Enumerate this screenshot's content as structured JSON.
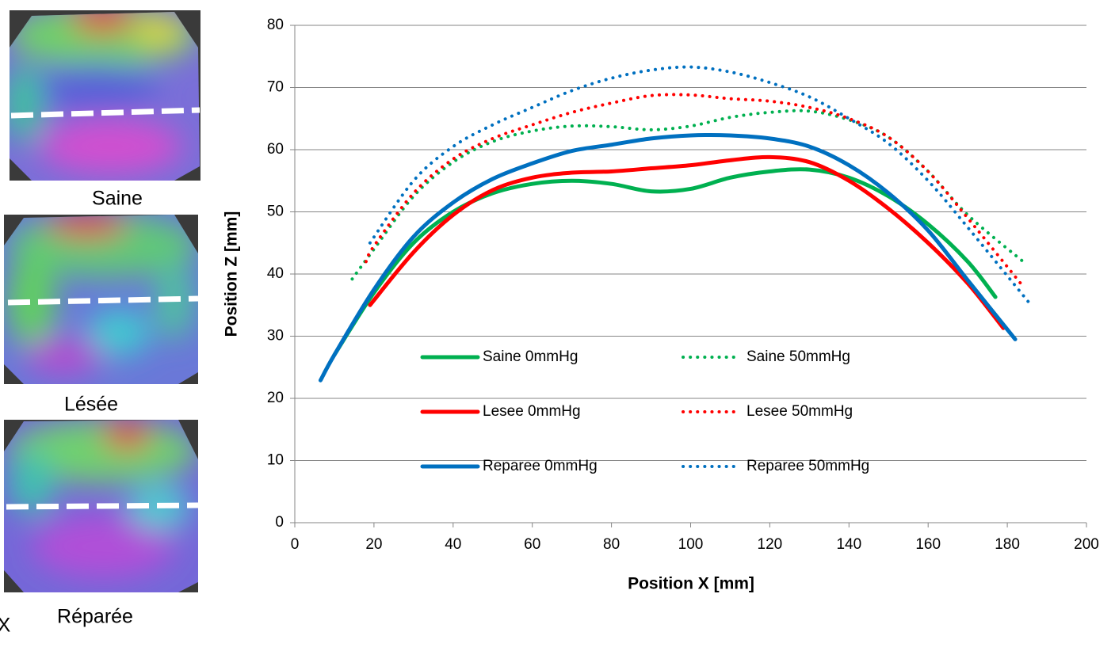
{
  "panels": [
    {
      "label": "Saine"
    },
    {
      "label": "Lésée"
    },
    {
      "label": "Réparée"
    }
  ],
  "corner_label": "X",
  "chart_data": {
    "type": "line",
    "x_label": "Position X  [mm]",
    "y_label": "Position Z  [mm]",
    "xlim": [
      0,
      200
    ],
    "xticks": [
      0,
      20,
      40,
      60,
      80,
      100,
      120,
      140,
      160,
      180,
      200
    ],
    "ylim": [
      0,
      80
    ],
    "yticks": [
      0,
      10,
      20,
      30,
      40,
      50,
      60,
      70,
      80
    ],
    "grid": true,
    "legend": "lower center",
    "series": [
      {
        "name": "Saine 0mmHg",
        "color": "#00b050",
        "style": "solid",
        "x": [
          10,
          20,
          30,
          40,
          50,
          60,
          70,
          80,
          90,
          100,
          110,
          120,
          130,
          140,
          150,
          160,
          170,
          177
        ],
        "values": [
          27,
          37,
          45,
          50,
          53,
          54.5,
          55,
          54.5,
          53.3,
          53.7,
          55.5,
          56.5,
          56.8,
          55.5,
          52.5,
          48,
          42,
          36.3
        ]
      },
      {
        "name": "Saine 50mmHg",
        "color": "#00b050",
        "style": "dotted",
        "x": [
          14.5,
          20,
          30,
          40,
          50,
          60,
          70,
          80,
          90,
          100,
          110,
          120,
          130,
          140,
          150,
          160,
          170,
          184
        ],
        "values": [
          39.2,
          44,
          52.5,
          58,
          61.3,
          63,
          63.8,
          63.7,
          63.2,
          63.8,
          65.2,
          66,
          66.2,
          64.8,
          62,
          56.5,
          49.5,
          42
        ]
      },
      {
        "name": "Lesee 0mmHg",
        "color": "#ff0000",
        "style": "solid",
        "x": [
          19,
          30,
          40,
          50,
          60,
          70,
          80,
          90,
          100,
          110,
          120,
          130,
          140,
          150,
          160,
          170,
          179
        ],
        "values": [
          35,
          43.5,
          49.5,
          53.5,
          55.5,
          56.3,
          56.5,
          57,
          57.5,
          58.3,
          58.8,
          58,
          55,
          50.5,
          45,
          38.5,
          31.3
        ]
      },
      {
        "name": "Lesee 50mmHg",
        "color": "#ff0000",
        "style": "dotted",
        "x": [
          18,
          20,
          30,
          40,
          50,
          60,
          70,
          80,
          90,
          100,
          110,
          120,
          130,
          140,
          150,
          160,
          170,
          184
        ],
        "values": [
          42,
          44.5,
          53,
          58.5,
          61.8,
          64,
          66,
          67.5,
          68.7,
          68.8,
          68.2,
          67.8,
          66.8,
          65,
          62,
          56.5,
          49,
          38
        ]
      },
      {
        "name": "Reparee 0mmHg",
        "color": "#0070c0",
        "style": "solid",
        "x": [
          6.5,
          10,
          20,
          30,
          40,
          50,
          60,
          70,
          80,
          90,
          100,
          110,
          120,
          130,
          140,
          150,
          160,
          170,
          182
        ],
        "values": [
          22.9,
          27,
          37.5,
          46,
          51.5,
          55.3,
          57.8,
          59.8,
          60.8,
          61.8,
          62.3,
          62.3,
          61.8,
          60.5,
          57.5,
          53,
          47,
          39,
          29.5
        ]
      },
      {
        "name": "Reparee 50mmHg",
        "color": "#0070c0",
        "style": "dotted",
        "x": [
          19,
          30,
          40,
          50,
          60,
          70,
          80,
          90,
          100,
          110,
          120,
          130,
          140,
          150,
          160,
          170,
          186
        ],
        "values": [
          45,
          55,
          60.5,
          64,
          66.8,
          69.5,
          71.5,
          72.8,
          73.3,
          72.5,
          70.8,
          68.5,
          65,
          61,
          55,
          47.5,
          35
        ]
      }
    ]
  }
}
